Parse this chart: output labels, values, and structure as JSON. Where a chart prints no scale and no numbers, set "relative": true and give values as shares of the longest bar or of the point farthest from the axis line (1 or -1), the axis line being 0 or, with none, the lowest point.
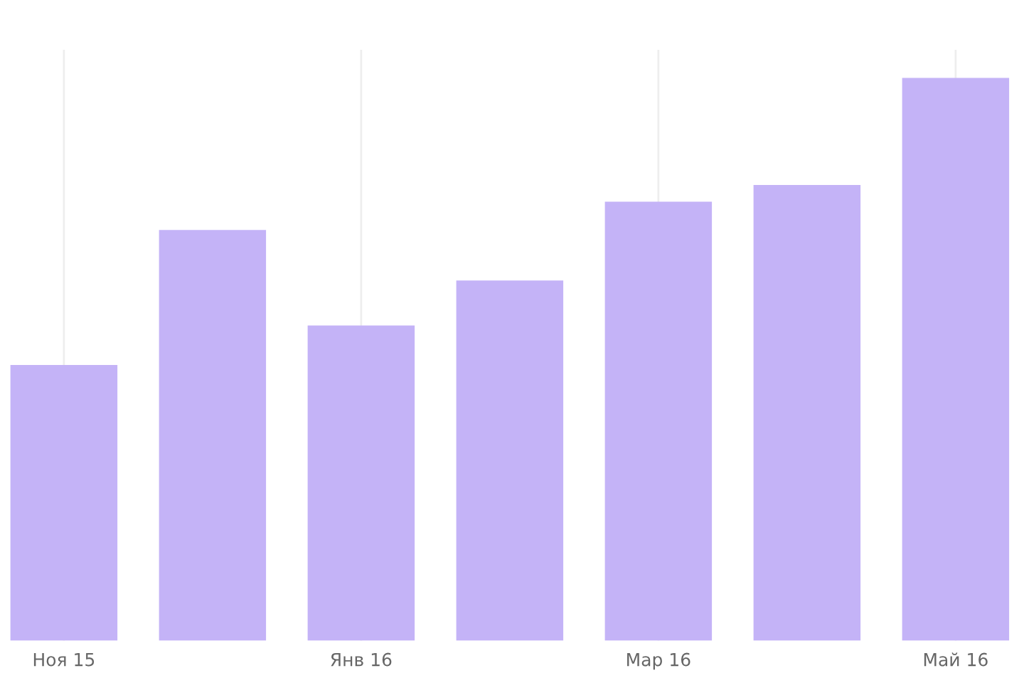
{
  "chart_data": {
    "type": "bar",
    "relative": true,
    "categories": [
      "Ноя 15",
      null,
      "Янв 16",
      null,
      "Мар 16",
      null,
      "Май 16"
    ],
    "values": [
      0.49,
      0.73,
      0.56,
      0.64,
      0.78,
      0.81,
      1.0
    ],
    "color": "#c4b3f7",
    "grid": true
  }
}
